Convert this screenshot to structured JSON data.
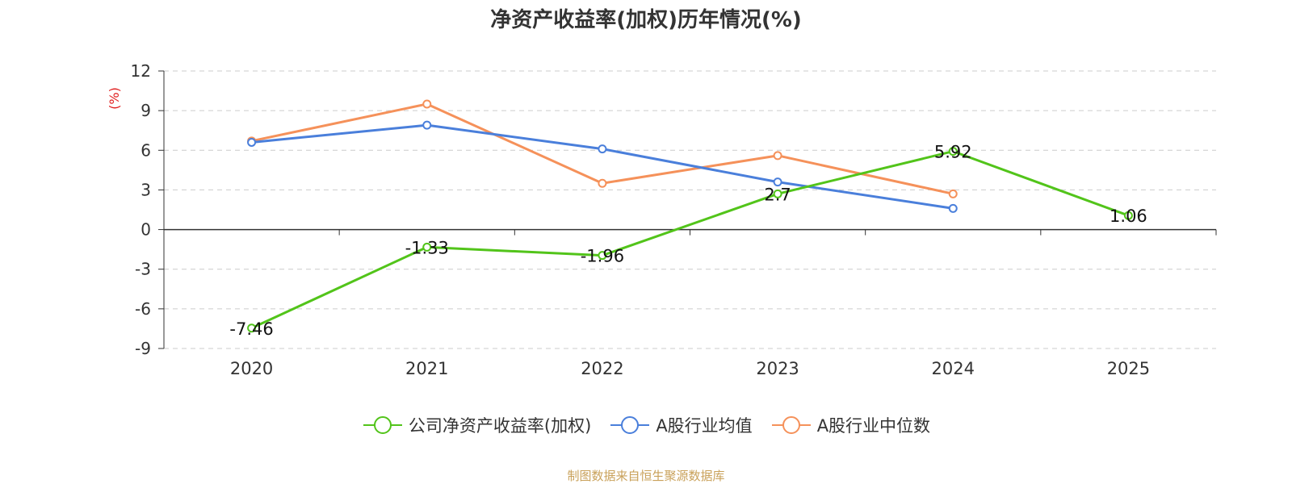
{
  "chart_data": {
    "type": "line",
    "title": "净资产收益率(加权)历年情况(%)",
    "ylabel": "(%)",
    "xlabel": "",
    "categories": [
      "2020",
      "2021",
      "2022",
      "2023",
      "2024",
      "2025"
    ],
    "ylim": [
      -9,
      12
    ],
    "yticks": [
      -9,
      -6,
      -3,
      0,
      3,
      6,
      9,
      12
    ],
    "grid": true,
    "legend_position": "bottom",
    "series": [
      {
        "name": "公司净资产收益率(加权)",
        "color": "#52c41a",
        "values": [
          -7.46,
          -1.33,
          -1.96,
          2.7,
          5.92,
          1.06
        ],
        "labels": [
          "-7.46",
          "-1.33",
          "-1.96",
          "2.7",
          "5.92",
          "1.06"
        ]
      },
      {
        "name": "A股行业均值",
        "color": "#4a7fdb",
        "values": [
          6.6,
          7.9,
          6.1,
          3.6,
          1.6,
          null
        ]
      },
      {
        "name": "A股行业中位数",
        "color": "#f5915a",
        "values": [
          6.7,
          9.5,
          3.5,
          5.6,
          2.7,
          null
        ]
      }
    ]
  },
  "axis_label_color": "#e02020",
  "source_text": "制图数据来自恒生聚源数据库"
}
